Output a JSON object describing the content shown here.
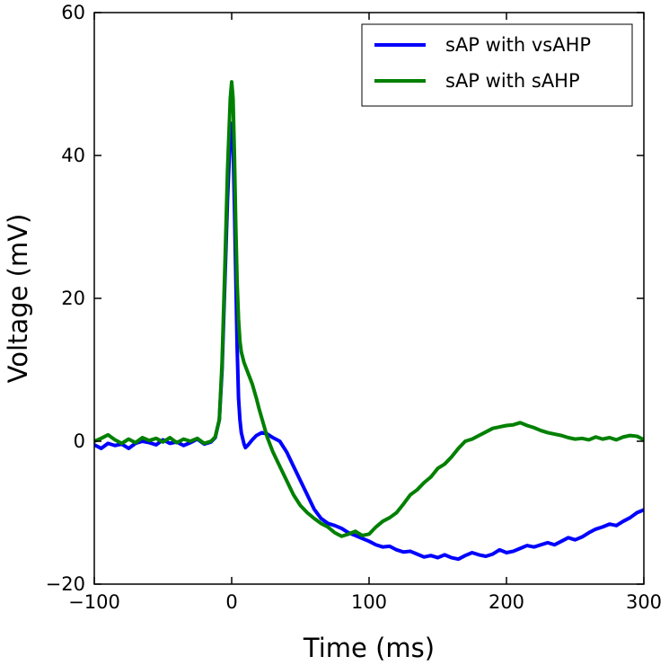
{
  "chart_data": {
    "type": "line",
    "xlabel": "Time (ms)",
    "ylabel": "Voltage (mV)",
    "xlim": [
      -100,
      300
    ],
    "ylim": [
      -20,
      60
    ],
    "xticks": [
      -100,
      0,
      100,
      200,
      300
    ],
    "yticks": [
      -20,
      0,
      20,
      40,
      60
    ],
    "xtick_labels": [
      "−100",
      "0",
      "100",
      "200",
      "300"
    ],
    "ytick_labels": [
      "−20",
      "0",
      "20",
      "40",
      "60"
    ],
    "grid": false,
    "legend_position": "top-right",
    "series": [
      {
        "name": "sAP with vsAHP",
        "color": "#0000ff",
        "points": [
          [
            -100,
            -0.5
          ],
          [
            -95,
            -1.0
          ],
          [
            -90,
            -0.3
          ],
          [
            -85,
            -0.6
          ],
          [
            -80,
            -0.4
          ],
          [
            -75,
            -1.0
          ],
          [
            -70,
            -0.3
          ],
          [
            -65,
            0.0
          ],
          [
            -60,
            -0.2
          ],
          [
            -55,
            -0.5
          ],
          [
            -50,
            0.2
          ],
          [
            -45,
            -0.3
          ],
          [
            -40,
            -0.1
          ],
          [
            -35,
            -0.6
          ],
          [
            -30,
            -0.2
          ],
          [
            -25,
            0.3
          ],
          [
            -20,
            -0.4
          ],
          [
            -15,
            -0.1
          ],
          [
            -12,
            0.5
          ],
          [
            -9,
            3
          ],
          [
            -7,
            10
          ],
          [
            -5,
            22
          ],
          [
            -3,
            34
          ],
          [
            -1,
            43
          ],
          [
            0,
            44.5
          ],
          [
            1,
            42
          ],
          [
            2,
            33
          ],
          [
            3,
            23
          ],
          [
            4,
            13
          ],
          [
            5,
            6
          ],
          [
            6,
            3
          ],
          [
            7,
            1.2
          ],
          [
            8,
            0.4
          ],
          [
            9,
            -0.4
          ],
          [
            10,
            -0.9
          ],
          [
            12,
            -0.5
          ],
          [
            15,
            0.2
          ],
          [
            18,
            0.8
          ],
          [
            22,
            1.2
          ],
          [
            26,
            1.0
          ],
          [
            30,
            0.5
          ],
          [
            35,
            0.0
          ],
          [
            40,
            -1.5
          ],
          [
            45,
            -3.5
          ],
          [
            50,
            -5.5
          ],
          [
            55,
            -7.5
          ],
          [
            60,
            -9.5
          ],
          [
            65,
            -10.8
          ],
          [
            70,
            -11.5
          ],
          [
            75,
            -11.8
          ],
          [
            80,
            -12.2
          ],
          [
            85,
            -12.8
          ],
          [
            90,
            -13.2
          ],
          [
            95,
            -13.6
          ],
          [
            100,
            -14.0
          ],
          [
            105,
            -14.5
          ],
          [
            110,
            -14.8
          ],
          [
            115,
            -14.7
          ],
          [
            120,
            -15.2
          ],
          [
            125,
            -15.5
          ],
          [
            130,
            -15.4
          ],
          [
            135,
            -15.8
          ],
          [
            140,
            -16.2
          ],
          [
            145,
            -16.0
          ],
          [
            150,
            -16.3
          ],
          [
            155,
            -15.9
          ],
          [
            160,
            -16.3
          ],
          [
            165,
            -16.5
          ],
          [
            170,
            -16.0
          ],
          [
            175,
            -15.6
          ],
          [
            180,
            -15.9
          ],
          [
            185,
            -16.1
          ],
          [
            190,
            -15.8
          ],
          [
            195,
            -15.2
          ],
          [
            200,
            -15.6
          ],
          [
            205,
            -15.4
          ],
          [
            210,
            -15.0
          ],
          [
            215,
            -14.6
          ],
          [
            220,
            -14.8
          ],
          [
            225,
            -14.5
          ],
          [
            230,
            -14.2
          ],
          [
            235,
            -14.5
          ],
          [
            240,
            -14.0
          ],
          [
            245,
            -13.5
          ],
          [
            250,
            -13.8
          ],
          [
            255,
            -13.4
          ],
          [
            260,
            -12.8
          ],
          [
            265,
            -12.3
          ],
          [
            270,
            -12.0
          ],
          [
            275,
            -11.6
          ],
          [
            280,
            -11.8
          ],
          [
            285,
            -11.2
          ],
          [
            290,
            -10.7
          ],
          [
            295,
            -10.0
          ],
          [
            300,
            -9.6
          ]
        ]
      },
      {
        "name": "sAP with sAHP",
        "color": "#008000",
        "points": [
          [
            -100,
            0.0
          ],
          [
            -95,
            0.4
          ],
          [
            -90,
            0.9
          ],
          [
            -85,
            0.2
          ],
          [
            -80,
            -0.3
          ],
          [
            -75,
            0.3
          ],
          [
            -70,
            -0.2
          ],
          [
            -65,
            0.5
          ],
          [
            -60,
            0.1
          ],
          [
            -55,
            0.4
          ],
          [
            -50,
            -0.1
          ],
          [
            -45,
            0.5
          ],
          [
            -40,
            -0.2
          ],
          [
            -35,
            0.3
          ],
          [
            -30,
            0.0
          ],
          [
            -25,
            0.4
          ],
          [
            -20,
            -0.3
          ],
          [
            -15,
            0.0
          ],
          [
            -12,
            0.6
          ],
          [
            -9,
            3
          ],
          [
            -7,
            11
          ],
          [
            -5,
            24
          ],
          [
            -3,
            38
          ],
          [
            -1,
            48
          ],
          [
            0,
            50.3
          ],
          [
            1,
            48
          ],
          [
            2,
            40
          ],
          [
            3,
            30
          ],
          [
            4,
            22
          ],
          [
            5,
            17
          ],
          [
            6,
            14
          ],
          [
            7,
            12.5
          ],
          [
            9,
            11
          ],
          [
            12,
            9.5
          ],
          [
            15,
            8
          ],
          [
            18,
            6
          ],
          [
            20,
            4.5
          ],
          [
            23,
            2.5
          ],
          [
            26,
            0.5
          ],
          [
            30,
            -1.5
          ],
          [
            35,
            -3.5
          ],
          [
            40,
            -5.5
          ],
          [
            45,
            -7.5
          ],
          [
            50,
            -9.0
          ],
          [
            55,
            -10.0
          ],
          [
            60,
            -10.8
          ],
          [
            65,
            -11.5
          ],
          [
            70,
            -12.0
          ],
          [
            75,
            -12.8
          ],
          [
            80,
            -13.3
          ],
          [
            85,
            -13.0
          ],
          [
            90,
            -12.6
          ],
          [
            95,
            -13.2
          ],
          [
            100,
            -13.0
          ],
          [
            105,
            -12.0
          ],
          [
            110,
            -11.2
          ],
          [
            115,
            -10.7
          ],
          [
            120,
            -10.0
          ],
          [
            125,
            -8.8
          ],
          [
            130,
            -7.5
          ],
          [
            135,
            -6.8
          ],
          [
            140,
            -5.8
          ],
          [
            145,
            -5.0
          ],
          [
            150,
            -3.8
          ],
          [
            155,
            -3.2
          ],
          [
            160,
            -2.2
          ],
          [
            165,
            -1.0
          ],
          [
            170,
            0.0
          ],
          [
            175,
            0.3
          ],
          [
            180,
            0.8
          ],
          [
            185,
            1.3
          ],
          [
            190,
            1.8
          ],
          [
            195,
            2.0
          ],
          [
            200,
            2.2
          ],
          [
            205,
            2.3
          ],
          [
            210,
            2.6
          ],
          [
            215,
            2.2
          ],
          [
            220,
            1.9
          ],
          [
            225,
            1.5
          ],
          [
            230,
            1.2
          ],
          [
            235,
            1.0
          ],
          [
            240,
            0.8
          ],
          [
            245,
            0.5
          ],
          [
            250,
            0.3
          ],
          [
            255,
            0.4
          ],
          [
            260,
            0.2
          ],
          [
            265,
            0.6
          ],
          [
            270,
            0.3
          ],
          [
            275,
            0.5
          ],
          [
            280,
            0.2
          ],
          [
            285,
            0.6
          ],
          [
            290,
            0.8
          ],
          [
            295,
            0.7
          ],
          [
            300,
            0.2
          ]
        ]
      }
    ]
  }
}
